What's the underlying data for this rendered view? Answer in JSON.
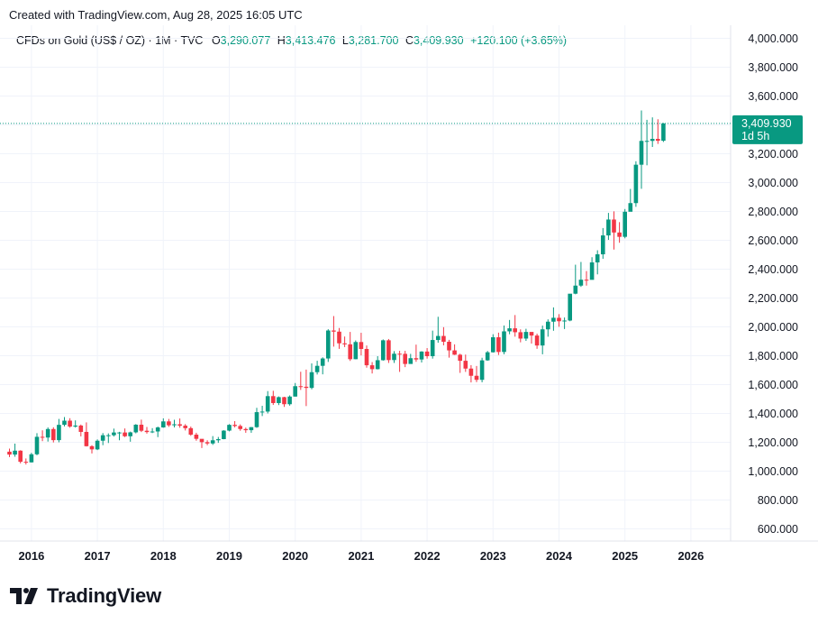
{
  "header": {
    "created": "Created with TradingView.com, Aug 28, 2025 16:05 UTC"
  },
  "legend": {
    "symbol": "CFDs on Gold (US$ / OZ) · 1M · TVC",
    "o_label": "O",
    "o": "3,290.077",
    "h_label": "H",
    "h": "3,413.476",
    "l_label": "L",
    "l": "3,281.700",
    "c_label": "C",
    "c": "3,409.930",
    "change": "+120.100 (+3.65%)"
  },
  "price_tag": {
    "price": "3,409.930",
    "countdown": "1d 5h"
  },
  "logo": {
    "text": "TradingView"
  },
  "colors": {
    "up": "#089981",
    "down": "#f23645",
    "grid": "#f0f3fa",
    "tag": "#089981"
  },
  "chart_data": {
    "type": "candlestick",
    "interval": "1M",
    "ylim": [
      500,
      4100
    ],
    "yticks": [
      600,
      800,
      1000,
      1200,
      1400,
      1600,
      1800,
      2000,
      2200,
      2400,
      2600,
      2800,
      3000,
      3200,
      3400,
      3600,
      3800,
      4000
    ],
    "ytick_labels": [
      "600.000",
      "800.000",
      "1,000.000",
      "1,200.000",
      "1,400.000",
      "1,600.000",
      "1,800.000",
      "2,000.000",
      "2,200.000",
      "2,400.000",
      "2,600.000",
      "2,800.000",
      "3,000.000",
      "3,200.000",
      "3,400.000",
      "3,600.000",
      "3,800.000",
      "4,000.000"
    ],
    "xticks": [
      "2016",
      "2017",
      "2018",
      "2019",
      "2020",
      "2021",
      "2022",
      "2023",
      "2024",
      "2025",
      "2026"
    ],
    "last_price": 3409.93,
    "candles": [
      [
        "2015-09",
        1135,
        1156,
        1098,
        1115
      ],
      [
        "2015-10",
        1115,
        1191,
        1100,
        1142
      ],
      [
        "2015-11",
        1142,
        1145,
        1054,
        1065
      ],
      [
        "2015-12",
        1065,
        1088,
        1046,
        1061
      ],
      [
        "2016-01",
        1061,
        1127,
        1060,
        1117
      ],
      [
        "2016-02",
        1117,
        1263,
        1110,
        1238
      ],
      [
        "2016-03",
        1238,
        1283,
        1208,
        1233
      ],
      [
        "2016-04",
        1233,
        1303,
        1205,
        1292
      ],
      [
        "2016-05",
        1292,
        1304,
        1199,
        1215
      ],
      [
        "2016-06",
        1215,
        1362,
        1200,
        1321
      ],
      [
        "2016-07",
        1321,
        1375,
        1310,
        1350
      ],
      [
        "2016-08",
        1350,
        1367,
        1301,
        1309
      ],
      [
        "2016-09",
        1309,
        1352,
        1302,
        1316
      ],
      [
        "2016-10",
        1316,
        1323,
        1241,
        1272
      ],
      [
        "2016-11",
        1272,
        1338,
        1171,
        1173
      ],
      [
        "2016-12",
        1173,
        1180,
        1123,
        1151
      ],
      [
        "2017-01",
        1151,
        1220,
        1146,
        1211
      ],
      [
        "2017-02",
        1211,
        1264,
        1180,
        1249
      ],
      [
        "2017-03",
        1249,
        1262,
        1195,
        1249
      ],
      [
        "2017-04",
        1249,
        1295,
        1240,
        1268
      ],
      [
        "2017-05",
        1268,
        1273,
        1214,
        1268
      ],
      [
        "2017-06",
        1268,
        1296,
        1236,
        1242
      ],
      [
        "2017-07",
        1242,
        1274,
        1204,
        1269
      ],
      [
        "2017-08",
        1269,
        1326,
        1262,
        1322
      ],
      [
        "2017-09",
        1322,
        1357,
        1271,
        1280
      ],
      [
        "2017-10",
        1280,
        1306,
        1260,
        1271
      ],
      [
        "2017-11",
        1271,
        1298,
        1264,
        1275
      ],
      [
        "2017-12",
        1275,
        1309,
        1236,
        1303
      ],
      [
        "2018-01",
        1303,
        1366,
        1301,
        1345
      ],
      [
        "2018-02",
        1345,
        1362,
        1307,
        1318
      ],
      [
        "2018-03",
        1318,
        1356,
        1303,
        1325
      ],
      [
        "2018-04",
        1325,
        1365,
        1301,
        1315
      ],
      [
        "2018-05",
        1315,
        1326,
        1282,
        1298
      ],
      [
        "2018-06",
        1298,
        1309,
        1245,
        1253
      ],
      [
        "2018-07",
        1253,
        1266,
        1211,
        1224
      ],
      [
        "2018-08",
        1224,
        1219,
        1160,
        1201
      ],
      [
        "2018-09",
        1201,
        1214,
        1180,
        1192
      ],
      [
        "2018-10",
        1192,
        1243,
        1182,
        1214
      ],
      [
        "2018-11",
        1214,
        1237,
        1196,
        1222
      ],
      [
        "2018-12",
        1222,
        1284,
        1221,
        1281
      ],
      [
        "2019-01",
        1281,
        1326,
        1276,
        1321
      ],
      [
        "2019-02",
        1321,
        1347,
        1303,
        1313
      ],
      [
        "2019-03",
        1313,
        1324,
        1280,
        1292
      ],
      [
        "2019-04",
        1292,
        1302,
        1266,
        1284
      ],
      [
        "2019-05",
        1284,
        1306,
        1266,
        1305
      ],
      [
        "2019-06",
        1305,
        1439,
        1300,
        1409
      ],
      [
        "2019-07",
        1409,
        1453,
        1382,
        1413
      ],
      [
        "2019-08",
        1413,
        1555,
        1400,
        1520
      ],
      [
        "2019-09",
        1520,
        1557,
        1459,
        1472
      ],
      [
        "2019-10",
        1472,
        1518,
        1458,
        1513
      ],
      [
        "2019-11",
        1513,
        1516,
        1445,
        1464
      ],
      [
        "2019-12",
        1464,
        1525,
        1454,
        1517
      ],
      [
        "2020-01",
        1517,
        1611,
        1517,
        1589
      ],
      [
        "2020-02",
        1589,
        1689,
        1563,
        1585
      ],
      [
        "2020-03",
        1585,
        1704,
        1451,
        1577
      ],
      [
        "2020-04",
        1577,
        1747,
        1567,
        1686
      ],
      [
        "2020-05",
        1686,
        1765,
        1670,
        1730
      ],
      [
        "2020-06",
        1730,
        1789,
        1671,
        1781
      ],
      [
        "2020-07",
        1781,
        1984,
        1757,
        1975
      ],
      [
        "2020-08",
        1975,
        2075,
        1863,
        1967
      ],
      [
        "2020-09",
        1967,
        1992,
        1848,
        1886
      ],
      [
        "2020-10",
        1886,
        1933,
        1860,
        1879
      ],
      [
        "2020-11",
        1879,
        1965,
        1764,
        1776
      ],
      [
        "2020-12",
        1776,
        1906,
        1775,
        1895
      ],
      [
        "2021-01",
        1895,
        1959,
        1802,
        1847
      ],
      [
        "2021-02",
        1847,
        1871,
        1717,
        1734
      ],
      [
        "2021-03",
        1734,
        1756,
        1677,
        1707
      ],
      [
        "2021-04",
        1707,
        1797,
        1705,
        1769
      ],
      [
        "2021-05",
        1769,
        1913,
        1766,
        1907
      ],
      [
        "2021-06",
        1907,
        1916,
        1750,
        1770
      ],
      [
        "2021-07",
        1770,
        1832,
        1750,
        1814
      ],
      [
        "2021-08",
        1814,
        1834,
        1688,
        1813
      ],
      [
        "2021-09",
        1813,
        1834,
        1721,
        1743
      ],
      [
        "2021-10",
        1743,
        1813,
        1746,
        1783
      ],
      [
        "2021-11",
        1783,
        1877,
        1758,
        1774
      ],
      [
        "2021-12",
        1774,
        1831,
        1753,
        1829
      ],
      [
        "2022-01",
        1829,
        1853,
        1780,
        1797
      ],
      [
        "2022-02",
        1797,
        1974,
        1780,
        1909
      ],
      [
        "2022-03",
        1909,
        2070,
        1890,
        1937
      ],
      [
        "2022-04",
        1937,
        1998,
        1872,
        1897
      ],
      [
        "2022-05",
        1897,
        1910,
        1787,
        1837
      ],
      [
        "2022-06",
        1837,
        1879,
        1805,
        1807
      ],
      [
        "2022-07",
        1807,
        1814,
        1681,
        1765
      ],
      [
        "2022-08",
        1765,
        1808,
        1688,
        1711
      ],
      [
        "2022-09",
        1711,
        1735,
        1615,
        1661
      ],
      [
        "2022-10",
        1661,
        1729,
        1617,
        1633
      ],
      [
        "2022-11",
        1633,
        1786,
        1616,
        1768
      ],
      [
        "2022-12",
        1768,
        1833,
        1765,
        1824
      ],
      [
        "2023-01",
        1824,
        1949,
        1822,
        1928
      ],
      [
        "2023-02",
        1928,
        1960,
        1805,
        1826
      ],
      [
        "2023-03",
        1826,
        2009,
        1810,
        1969
      ],
      [
        "2023-04",
        1969,
        2048,
        1949,
        1990
      ],
      [
        "2023-05",
        1990,
        2082,
        1932,
        1963
      ],
      [
        "2023-06",
        1963,
        1983,
        1893,
        1919
      ],
      [
        "2023-07",
        1919,
        1987,
        1903,
        1965
      ],
      [
        "2023-08",
        1965,
        1949,
        1884,
        1940
      ],
      [
        "2023-09",
        1940,
        1953,
        1848,
        1871
      ],
      [
        "2023-10",
        1871,
        2009,
        1810,
        1983
      ],
      [
        "2023-11",
        1983,
        2052,
        1932,
        2036
      ],
      [
        "2023-12",
        2036,
        2135,
        1973,
        2063
      ],
      [
        "2024-01",
        2063,
        2088,
        2001,
        2039
      ],
      [
        "2024-02",
        2039,
        2065,
        1985,
        2044
      ],
      [
        "2024-03",
        2044,
        2225,
        2039,
        2230
      ],
      [
        "2024-04",
        2230,
        2431,
        2226,
        2286
      ],
      [
        "2024-05",
        2286,
        2450,
        2277,
        2327
      ],
      [
        "2024-06",
        2327,
        2387,
        2286,
        2326
      ],
      [
        "2024-07",
        2326,
        2483,
        2353,
        2447
      ],
      [
        "2024-08",
        2447,
        2531,
        2364,
        2503
      ],
      [
        "2024-09",
        2503,
        2685,
        2472,
        2634
      ],
      [
        "2024-10",
        2634,
        2790,
        2603,
        2744
      ],
      [
        "2024-11",
        2744,
        2801,
        2536,
        2654
      ],
      [
        "2024-12",
        2654,
        2726,
        2583,
        2624
      ],
      [
        "2025-01",
        2624,
        2817,
        2614,
        2798
      ],
      [
        "2025-02",
        2798,
        2956,
        2832,
        2858
      ],
      [
        "2025-03",
        2858,
        3148,
        2832,
        3124
      ],
      [
        "2025-04",
        3124,
        3500,
        2957,
        3289
      ],
      [
        "2025-05",
        3289,
        3435,
        3120,
        3289
      ],
      [
        "2025-06",
        3289,
        3452,
        3247,
        3303
      ],
      [
        "2025-07",
        3303,
        3439,
        3268,
        3290
      ],
      [
        "2025-08",
        3290.077,
        3413.476,
        3281.7,
        3409.93
      ]
    ]
  }
}
